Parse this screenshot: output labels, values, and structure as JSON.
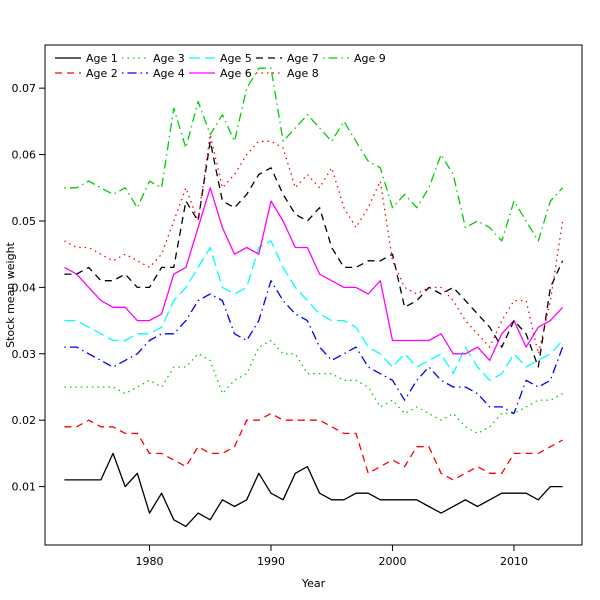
{
  "figure": {
    "title": "",
    "background": "#ffffff",
    "foreground": "#000000"
  },
  "chart_data": {
    "type": "line",
    "title": "",
    "xlabel": "Year",
    "ylabel": "Stock mean weight",
    "grid": false,
    "legend_position": "top-left",
    "legend_rows": 2,
    "legend_columns": 5,
    "xlim": [
      1971.4,
      2015.6
    ],
    "ylim": [
      0.0012,
      0.0765
    ],
    "xticks": [
      1980,
      1990,
      2000,
      2010
    ],
    "xtick_labels": [
      "1980",
      "1990",
      "2000",
      "2010"
    ],
    "yticks": [
      0.01,
      0.02,
      0.03,
      0.04,
      0.05,
      0.06,
      0.07
    ],
    "ytick_labels": [
      "0.01",
      "0.02",
      "0.03",
      "0.04",
      "0.05",
      "0.06",
      "0.07"
    ],
    "x": [
      1973,
      1974,
      1975,
      1976,
      1977,
      1978,
      1979,
      1980,
      1981,
      1982,
      1983,
      1984,
      1985,
      1986,
      1987,
      1988,
      1989,
      1990,
      1991,
      1992,
      1993,
      1994,
      1995,
      1996,
      1997,
      1998,
      1999,
      2000,
      2001,
      2002,
      2003,
      2004,
      2005,
      2006,
      2007,
      2008,
      2009,
      2010,
      2011,
      2012,
      2013,
      2014
    ],
    "series": [
      {
        "name": "Age 1",
        "color": "#000000",
        "linestyle": "solid",
        "values": [
          0.011,
          0.011,
          0.011,
          0.011,
          0.015,
          0.01,
          0.012,
          0.006,
          0.009,
          0.005,
          0.004,
          0.006,
          0.005,
          0.008,
          0.007,
          0.008,
          0.012,
          0.009,
          0.008,
          0.012,
          0.013,
          0.009,
          0.008,
          0.008,
          0.009,
          0.009,
          0.008,
          0.008,
          0.008,
          0.008,
          0.007,
          0.006,
          0.007,
          0.008,
          0.007,
          0.008,
          0.009,
          0.009,
          0.009,
          0.008,
          0.01,
          0.01
        ]
      },
      {
        "name": "Age 2",
        "color": "#ff0000",
        "linestyle": "dashed",
        "values": [
          0.019,
          0.019,
          0.02,
          0.019,
          0.019,
          0.018,
          0.018,
          0.015,
          0.015,
          0.014,
          0.013,
          0.016,
          0.015,
          0.015,
          0.016,
          0.02,
          0.02,
          0.021,
          0.02,
          0.02,
          0.02,
          0.02,
          0.019,
          0.018,
          0.018,
          0.012,
          0.013,
          0.014,
          0.013,
          0.016,
          0.016,
          0.012,
          0.011,
          0.012,
          0.013,
          0.012,
          0.012,
          0.015,
          0.015,
          0.015,
          0.016,
          0.017
        ]
      },
      {
        "name": "Age 3",
        "color": "#00cd00",
        "linestyle": "dotted",
        "values": [
          0.025,
          0.025,
          0.025,
          0.025,
          0.025,
          0.024,
          0.025,
          0.026,
          0.025,
          0.028,
          0.028,
          0.03,
          0.029,
          0.024,
          0.026,
          0.027,
          0.031,
          0.032,
          0.03,
          0.03,
          0.027,
          0.027,
          0.027,
          0.026,
          0.026,
          0.025,
          0.022,
          0.023,
          0.021,
          0.022,
          0.021,
          0.02,
          0.021,
          0.019,
          0.018,
          0.019,
          0.021,
          0.021,
          0.022,
          0.023,
          0.023,
          0.024
        ]
      },
      {
        "name": "Age 4",
        "color": "#0000ff",
        "linestyle": "dotdash",
        "values": [
          0.031,
          0.031,
          0.03,
          0.029,
          0.028,
          0.029,
          0.03,
          0.032,
          0.033,
          0.033,
          0.035,
          0.038,
          0.039,
          0.038,
          0.033,
          0.032,
          0.035,
          0.041,
          0.038,
          0.036,
          0.035,
          0.031,
          0.029,
          0.03,
          0.031,
          0.028,
          0.027,
          0.026,
          0.023,
          0.026,
          0.028,
          0.026,
          0.025,
          0.025,
          0.024,
          0.022,
          0.022,
          0.021,
          0.026,
          0.025,
          0.026,
          0.031
        ]
      },
      {
        "name": "Age 5",
        "color": "#00ffff",
        "linestyle": "longdash",
        "values": [
          0.035,
          0.035,
          0.034,
          0.033,
          0.032,
          0.032,
          0.033,
          0.033,
          0.034,
          0.038,
          0.04,
          0.043,
          0.046,
          0.04,
          0.039,
          0.04,
          0.046,
          0.047,
          0.043,
          0.04,
          0.038,
          0.036,
          0.035,
          0.035,
          0.034,
          0.031,
          0.03,
          0.028,
          0.03,
          0.028,
          0.029,
          0.03,
          0.027,
          0.031,
          0.028,
          0.026,
          0.027,
          0.03,
          0.028,
          0.029,
          0.03,
          0.032
        ]
      },
      {
        "name": "Age 6",
        "color": "#ff00ff",
        "linestyle": "solid",
        "values": [
          0.043,
          0.042,
          0.04,
          0.038,
          0.037,
          0.037,
          0.035,
          0.035,
          0.036,
          0.042,
          0.043,
          0.049,
          0.055,
          0.049,
          0.045,
          0.046,
          0.045,
          0.053,
          0.05,
          0.046,
          0.046,
          0.042,
          0.041,
          0.04,
          0.04,
          0.039,
          0.041,
          0.032,
          0.032,
          0.032,
          0.032,
          0.033,
          0.03,
          0.03,
          0.031,
          0.029,
          0.033,
          0.035,
          0.031,
          0.034,
          0.035,
          0.037
        ]
      },
      {
        "name": "Age 7",
        "color": "#000000",
        "linestyle": "dashed",
        "values": [
          0.042,
          0.042,
          0.043,
          0.041,
          0.041,
          0.042,
          0.04,
          0.04,
          0.043,
          0.043,
          0.053,
          0.05,
          0.062,
          0.053,
          0.052,
          0.054,
          0.057,
          0.058,
          0.054,
          0.051,
          0.05,
          0.052,
          0.046,
          0.043,
          0.043,
          0.044,
          0.044,
          0.045,
          0.037,
          0.038,
          0.04,
          0.039,
          0.04,
          0.038,
          0.036,
          0.034,
          0.031,
          0.035,
          0.033,
          0.028,
          0.04,
          0.044
        ]
      },
      {
        "name": "Age 8",
        "color": "#ff0000",
        "linestyle": "dotted",
        "values": [
          0.047,
          0.046,
          0.046,
          0.045,
          0.044,
          0.045,
          0.044,
          0.043,
          0.045,
          0.05,
          0.055,
          0.05,
          0.063,
          0.055,
          0.057,
          0.06,
          0.062,
          0.062,
          0.061,
          0.055,
          0.057,
          0.055,
          0.058,
          0.052,
          0.049,
          0.052,
          0.056,
          0.044,
          0.04,
          0.039,
          0.04,
          0.04,
          0.038,
          0.035,
          0.033,
          0.031,
          0.035,
          0.038,
          0.038,
          0.03,
          0.038,
          0.05
        ]
      },
      {
        "name": "Age 9",
        "color": "#00cd00",
        "linestyle": "dotdash",
        "values": [
          0.055,
          0.055,
          0.056,
          0.055,
          0.054,
          0.055,
          0.052,
          0.056,
          0.055,
          0.067,
          0.061,
          0.068,
          0.063,
          0.066,
          0.062,
          0.07,
          0.073,
          0.073,
          0.062,
          0.064,
          0.066,
          0.064,
          0.062,
          0.065,
          0.062,
          0.059,
          0.058,
          0.052,
          0.054,
          0.052,
          0.055,
          0.06,
          0.057,
          0.049,
          0.05,
          0.049,
          0.047,
          0.053,
          0.05,
          0.047,
          0.053,
          0.055
        ]
      }
    ]
  }
}
